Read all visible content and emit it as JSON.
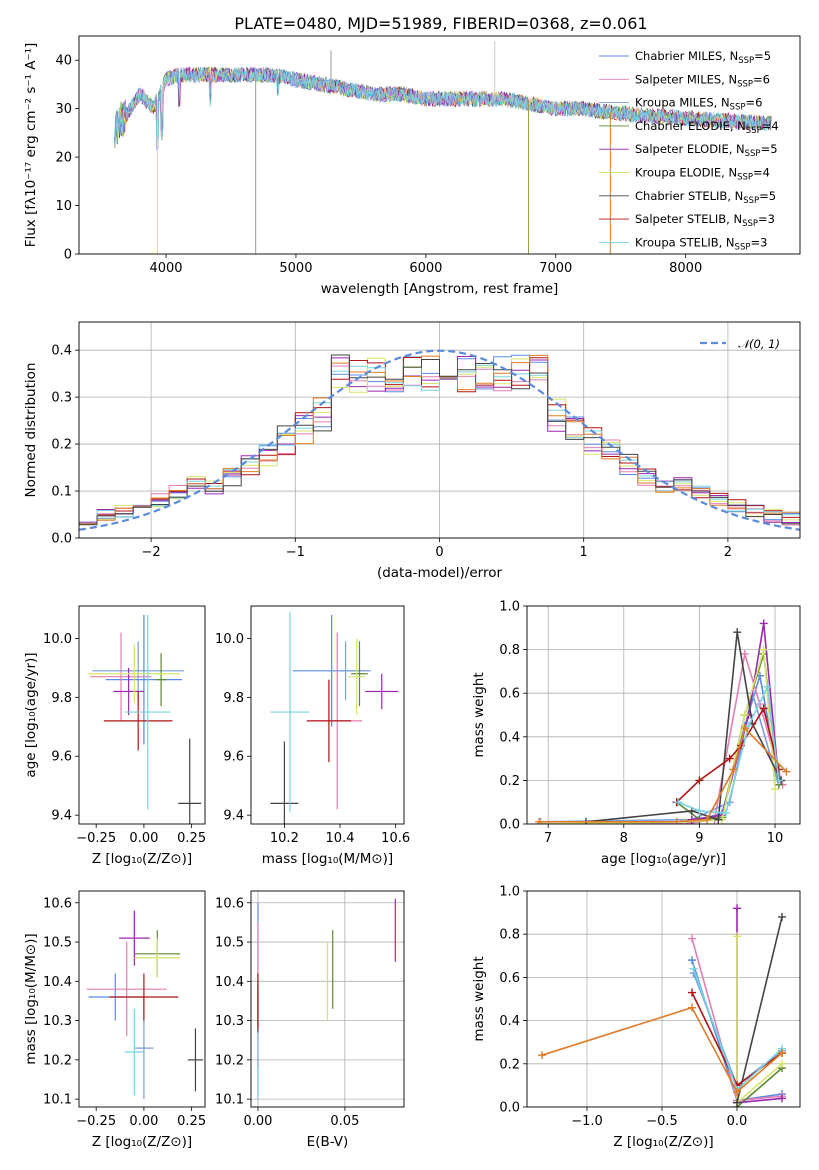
{
  "figure": {
    "title": "PLATE=0480, MJD=51989, FIBERID=0368, z=0.061"
  },
  "series_styles": [
    {
      "key": "chab_miles",
      "color": "#5b8be0"
    },
    {
      "key": "salp_miles",
      "color": "#e37fb3"
    },
    {
      "key": "krou_miles",
      "color": "#7a9edc"
    },
    {
      "key": "chab_elodie",
      "color": "#5d8a2e"
    },
    {
      "key": "salp_elodie",
      "color": "#9b27b0"
    },
    {
      "key": "krou_elodie",
      "color": "#d8e36b"
    },
    {
      "key": "chab_stelib",
      "color": "#444444"
    },
    {
      "key": "salp_stelib",
      "color": "#b11414"
    },
    {
      "key": "krou_stelib",
      "color": "#79d3de"
    }
  ],
  "chart_data": [
    {
      "id": "spectrum",
      "type": "line",
      "xlabel": "wavelength [Angstrom, rest frame]",
      "ylabel": "Flux [fλ10⁻¹⁷ erg cm⁻² s⁻¹ A⁻¹]",
      "xlim": [
        3330,
        8880
      ],
      "ylim": [
        0,
        45
      ],
      "xticks": [
        4000,
        5000,
        6000,
        7000,
        8000
      ],
      "yticks": [
        0,
        10,
        20,
        30,
        40
      ],
      "legend_position": "right",
      "legend": [
        {
          "base": "Chabrier MILES, N",
          "sub": "SSP",
          "tail": "=5"
        },
        {
          "base": "Salpeter MILES, N",
          "sub": "SSP",
          "tail": "=6"
        },
        {
          "base": "Kroupa MILES, N",
          "sub": "SSP",
          "tail": "=6"
        },
        {
          "base": "Chabrier ELODIE, N",
          "sub": "SSP",
          "tail": "=4"
        },
        {
          "base": "Salpeter ELODIE, N",
          "sub": "SSP",
          "tail": "=5"
        },
        {
          "base": "Kroupa ELODIE, N",
          "sub": "SSP",
          "tail": "=4"
        },
        {
          "base": "Chabrier STELIB, N",
          "sub": "SSP",
          "tail": "=5"
        },
        {
          "base": "Salpeter STELIB, N",
          "sub": "SSP",
          "tail": "=3"
        },
        {
          "base": "Kroupa STELIB, N",
          "sub": "SSP",
          "tail": "=3"
        }
      ],
      "continuum": [
        [
          3600,
          26
        ],
        [
          3700,
          29
        ],
        [
          3800,
          33
        ],
        [
          3900,
          30
        ],
        [
          4000,
          36
        ],
        [
          4100,
          37
        ],
        [
          4200,
          37
        ],
        [
          4400,
          37
        ],
        [
          4600,
          37
        ],
        [
          4800,
          37
        ],
        [
          5000,
          36
        ],
        [
          5200,
          35
        ],
        [
          5400,
          34
        ],
        [
          5600,
          33
        ],
        [
          5800,
          33
        ],
        [
          6000,
          32
        ],
        [
          6200,
          32
        ],
        [
          6400,
          32
        ],
        [
          6600,
          32
        ],
        [
          6800,
          31
        ],
        [
          7000,
          30
        ],
        [
          7200,
          30
        ],
        [
          7500,
          29
        ],
        [
          8000,
          28
        ],
        [
          8600,
          27
        ]
      ],
      "spikes": [
        [
          3934,
          0
        ],
        [
          4690,
          0
        ],
        [
          5270,
          42
        ],
        [
          6530,
          44
        ],
        [
          6790,
          0
        ],
        [
          7420,
          0
        ]
      ]
    },
    {
      "id": "residuals",
      "type": "area",
      "xlabel": "(data-model)/error",
      "ylabel": "Normed distribution",
      "xlim": [
        -2.5,
        2.5
      ],
      "ylim": [
        0,
        0.46
      ],
      "xticks": [
        -2,
        -1,
        0,
        1,
        2
      ],
      "yticks": [
        0.0,
        0.1,
        0.2,
        0.3,
        0.4
      ],
      "legend": "𝒩(0, 1)",
      "grid": true
    },
    {
      "id": "age_vs_Z",
      "type": "scatter",
      "xlabel": "Z [log₁₀(Z/Z⊙)]",
      "ylabel": "age  [log₁₀(age/yr)]",
      "xlim": [
        -0.34,
        0.32
      ],
      "ylim": [
        9.37,
        10.11
      ],
      "xticks": [
        -0.25,
        0.0,
        0.25
      ],
      "yticks": [
        9.4,
        9.6,
        9.8,
        10.0
      ],
      "points": [
        {
          "x": 0.0,
          "y": 9.86,
          "xe": 0.2,
          "ye": 0.22,
          "s": 0
        },
        {
          "x": -0.12,
          "y": 9.87,
          "xe": 0.16,
          "ye": 0.15,
          "s": 1
        },
        {
          "x": -0.03,
          "y": 9.89,
          "xe": 0.24,
          "ye": 0.1,
          "s": 2
        },
        {
          "x": 0.09,
          "y": 9.86,
          "xe": 0.03,
          "ye": 0.09,
          "s": 3
        },
        {
          "x": -0.08,
          "y": 9.82,
          "xe": 0.08,
          "ye": 0.08,
          "s": 4
        },
        {
          "x": -0.05,
          "y": 9.88,
          "xe": 0.24,
          "ye": 0.1,
          "s": 5
        },
        {
          "x": 0.24,
          "y": 9.44,
          "xe": 0.06,
          "ye": 0.22,
          "s": 6
        },
        {
          "x": -0.03,
          "y": 9.72,
          "xe": 0.18,
          "ye": 0.1,
          "s": 7
        },
        {
          "x": 0.02,
          "y": 9.75,
          "xe": 0.12,
          "ye": 0.33,
          "s": 8
        }
      ]
    },
    {
      "id": "age_vs_mass",
      "type": "scatter",
      "xlabel": "mass [log₁₀(M/M⊙)]",
      "ylabel": "",
      "xlim": [
        10.08,
        10.63
      ],
      "ylim": [
        9.37,
        10.11
      ],
      "xticks": [
        10.2,
        10.4,
        10.6
      ],
      "yticks": [
        9.4,
        9.6,
        9.8,
        10.0
      ],
      "points": [
        {
          "x": 10.37,
          "y": 9.89,
          "xe": 0.14,
          "ye": 0.19,
          "s": 0
        },
        {
          "x": 10.39,
          "y": 9.72,
          "xe": 0.09,
          "ye": 0.3,
          "s": 1
        },
        {
          "x": 10.42,
          "y": 9.89,
          "xe": 0.07,
          "ye": 0.1,
          "s": 2
        },
        {
          "x": 10.47,
          "y": 9.88,
          "xe": 0.03,
          "ye": 0.11,
          "s": 3
        },
        {
          "x": 10.55,
          "y": 9.82,
          "xe": 0.06,
          "ye": 0.06,
          "s": 4
        },
        {
          "x": 10.46,
          "y": 9.87,
          "xe": 0.03,
          "ye": 0.13,
          "s": 5
        },
        {
          "x": 10.2,
          "y": 9.44,
          "xe": 0.05,
          "ye": 0.21,
          "s": 6
        },
        {
          "x": 10.36,
          "y": 9.72,
          "xe": 0.08,
          "ye": 0.14,
          "s": 7
        },
        {
          "x": 10.22,
          "y": 9.75,
          "xe": 0.07,
          "ye": 0.34,
          "s": 8
        }
      ]
    },
    {
      "id": "weight_vs_age",
      "type": "line",
      "xlabel": "age  [log₁₀(age/yr)]",
      "ylabel": "mass weight",
      "xlim": [
        6.72,
        10.33
      ],
      "ylim": [
        0,
        1
      ],
      "xticks": [
        7,
        8,
        9,
        10
      ],
      "yticks": [
        0.0,
        0.2,
        0.4,
        0.6,
        0.8,
        1.0
      ],
      "grid": true,
      "series": [
        {
          "s": 0,
          "points": [
            [
              6.9,
              0.0
            ],
            [
              8.8,
              0.0
            ],
            [
              9.3,
              0.05
            ],
            [
              9.6,
              0.45
            ],
            [
              9.8,
              0.68
            ],
            [
              10.05,
              0.2
            ]
          ]
        },
        {
          "s": 1,
          "points": [
            [
              6.9,
              0.0
            ],
            [
              8.8,
              0.0
            ],
            [
              9.2,
              0.02
            ],
            [
              9.6,
              0.78
            ],
            [
              9.8,
              0.55
            ],
            [
              10.1,
              0.18
            ]
          ]
        },
        {
          "s": 2,
          "points": [
            [
              6.9,
              0.01
            ],
            [
              8.9,
              0.02
            ],
            [
              9.4,
              0.1
            ],
            [
              9.7,
              0.6
            ],
            [
              10.05,
              0.18
            ]
          ]
        },
        {
          "s": 3,
          "points": [
            [
              8.7,
              0.1
            ],
            [
              9.0,
              0.02
            ],
            [
              9.3,
              0.03
            ],
            [
              9.6,
              0.5
            ],
            [
              9.85,
              0.78
            ],
            [
              10.05,
              0.18
            ]
          ]
        },
        {
          "s": 4,
          "points": [
            [
              8.9,
              0.02
            ],
            [
              9.3,
              0.04
            ],
            [
              9.65,
              0.5
            ],
            [
              9.85,
              0.92
            ],
            [
              10.05,
              0.2
            ]
          ]
        },
        {
          "s": 5,
          "points": [
            [
              6.9,
              0.0
            ],
            [
              8.8,
              0.01
            ],
            [
              9.3,
              0.02
            ],
            [
              9.6,
              0.5
            ],
            [
              9.85,
              0.8
            ],
            [
              10.0,
              0.16
            ]
          ]
        },
        {
          "s": 6,
          "points": [
            [
              7.5,
              0.01
            ],
            [
              8.9,
              0.06
            ],
            [
              9.25,
              0.02
            ],
            [
              9.5,
              0.88
            ],
            [
              9.7,
              0.46
            ],
            [
              10.08,
              0.2
            ]
          ]
        },
        {
          "s": 7,
          "points": [
            [
              8.7,
              0.1
            ],
            [
              9.0,
              0.2
            ],
            [
              9.4,
              0.3
            ],
            [
              9.55,
              0.36
            ],
            [
              9.85,
              0.53
            ],
            [
              10.05,
              0.25
            ]
          ]
        },
        {
          "s": 8,
          "points": [
            [
              8.72,
              0.1
            ],
            [
              9.0,
              0.06
            ],
            [
              9.35,
              0.05
            ],
            [
              9.65,
              0.45
            ],
            [
              9.9,
              0.63
            ],
            [
              10.05,
              0.2
            ]
          ]
        },
        {
          "s": 9,
          "points": [
            [
              6.88,
              0.01
            ],
            [
              8.7,
              0.01
            ],
            [
              9.1,
              0.02
            ],
            [
              9.45,
              0.25
            ],
            [
              9.6,
              0.44
            ],
            [
              10.15,
              0.24
            ]
          ]
        }
      ]
    },
    {
      "id": "mass_vs_Z",
      "type": "scatter",
      "xlabel": "Z [log₁₀(Z/Z⊙)]",
      "ylabel": "mass [log₁₀(M/M⊙)]",
      "xlim": [
        -0.34,
        0.32
      ],
      "ylim": [
        10.08,
        10.63
      ],
      "xticks": [
        -0.25,
        0.0,
        0.25
      ],
      "yticks": [
        10.1,
        10.2,
        10.3,
        10.4,
        10.5,
        10.6
      ],
      "points": [
        {
          "x": -0.15,
          "y": 10.36,
          "xe": 0.14,
          "ye": 0.06,
          "s": 0
        },
        {
          "x": -0.09,
          "y": 10.38,
          "xe": 0.21,
          "ye": 0.12,
          "s": 1
        },
        {
          "x": 0.0,
          "y": 10.23,
          "xe": 0.05,
          "ye": 0.13,
          "s": 2
        },
        {
          "x": 0.07,
          "y": 10.47,
          "xe": 0.12,
          "ye": 0.06,
          "s": 3
        },
        {
          "x": -0.05,
          "y": 10.51,
          "xe": 0.08,
          "ye": 0.07,
          "s": 4
        },
        {
          "x": 0.07,
          "y": 10.46,
          "xe": 0.12,
          "ye": 0.05,
          "s": 5
        },
        {
          "x": 0.27,
          "y": 10.2,
          "xe": 0.04,
          "ye": 0.08,
          "s": 6
        },
        {
          "x": 0.0,
          "y": 10.36,
          "xe": 0.18,
          "ye": 0.06,
          "s": 7
        },
        {
          "x": -0.05,
          "y": 10.22,
          "xe": 0.05,
          "ye": 0.11,
          "s": 8
        }
      ]
    },
    {
      "id": "mass_vs_EBV",
      "type": "scatter",
      "xlabel": "E(B-V)",
      "ylabel": "",
      "xlim": [
        -0.004,
        0.084
      ],
      "ylim": [
        10.08,
        10.63
      ],
      "xticks": [
        0.0,
        0.05
      ],
      "yticks": [
        10.1,
        10.2,
        10.3,
        10.4,
        10.5,
        10.6
      ],
      "grid": true,
      "points": [
        {
          "x": 0.0,
          "y": 10.45,
          "ye": 0.15,
          "s": 0
        },
        {
          "x": 0.0,
          "y": 10.42,
          "ye": 0.13,
          "s": 1
        },
        {
          "x": 0.0,
          "y": 10.2,
          "ye": 0.1,
          "s": 2
        },
        {
          "x": 0.043,
          "y": 10.43,
          "ye": 0.1,
          "s": 3
        },
        {
          "x": 0.079,
          "y": 10.53,
          "ye": 0.08,
          "s": 4
        },
        {
          "x": 0.04,
          "y": 10.4,
          "ye": 0.1,
          "s": 5
        },
        {
          "x": 0.0,
          "y": 10.33,
          "ye": 0.06,
          "s": 6
        },
        {
          "x": 0.0,
          "y": 10.35,
          "ye": 0.07,
          "s": 7
        },
        {
          "x": 0.0,
          "y": 10.14,
          "ye": 0.04,
          "s": 8
        }
      ]
    },
    {
      "id": "weight_vs_Z",
      "type": "line",
      "xlabel": "Z [log₁₀(Z/Z⊙)]",
      "ylabel": "mass weight",
      "xlim": [
        -1.4,
        0.42
      ],
      "ylim": [
        0,
        1
      ],
      "xticks": [
        -1.0,
        -0.5,
        0.0
      ],
      "yticks": [
        0.0,
        0.2,
        0.4,
        0.6,
        0.8,
        1.0
      ],
      "grid": true,
      "series": [
        {
          "s": 0,
          "points": [
            [
              -0.3,
              0.68
            ],
            [
              0.0,
              0.03
            ],
            [
              0.3,
              0.06
            ]
          ]
        },
        {
          "s": 1,
          "points": [
            [
              -0.3,
              0.78
            ],
            [
              0.0,
              0.03
            ],
            [
              0.3,
              0.05
            ]
          ]
        },
        {
          "s": 2,
          "points": [
            [
              -0.29,
              0.62
            ],
            [
              0.0,
              0.1
            ],
            [
              0.3,
              0.26
            ]
          ]
        },
        {
          "s": 3,
          "points": [
            [
              0.0,
              0.0
            ],
            [
              0.3,
              0.18
            ]
          ]
        },
        {
          "s": 4,
          "points": [
            [
              0.0,
              0.92
            ],
            [
              0.0,
              0.02
            ],
            [
              0.3,
              0.04
            ]
          ]
        },
        {
          "s": 5,
          "points": [
            [
              0.0,
              0.79
            ],
            [
              0.0,
              0.02
            ],
            [
              0.3,
              0.2
            ]
          ]
        },
        {
          "s": 6,
          "points": [
            [
              0.0,
              0.02
            ],
            [
              0.3,
              0.88
            ]
          ]
        },
        {
          "s": 7,
          "points": [
            [
              -0.3,
              0.53
            ],
            [
              0.0,
              0.1
            ],
            [
              0.3,
              0.25
            ]
          ]
        },
        {
          "s": 8,
          "points": [
            [
              -0.29,
              0.64
            ],
            [
              0.0,
              0.08
            ],
            [
              0.3,
              0.27
            ]
          ]
        },
        {
          "s": 9,
          "points": [
            [
              -1.3,
              0.24
            ],
            [
              -0.3,
              0.46
            ],
            [
              0.0,
              0.07
            ],
            [
              0.3,
              0.25
            ]
          ]
        }
      ]
    }
  ]
}
